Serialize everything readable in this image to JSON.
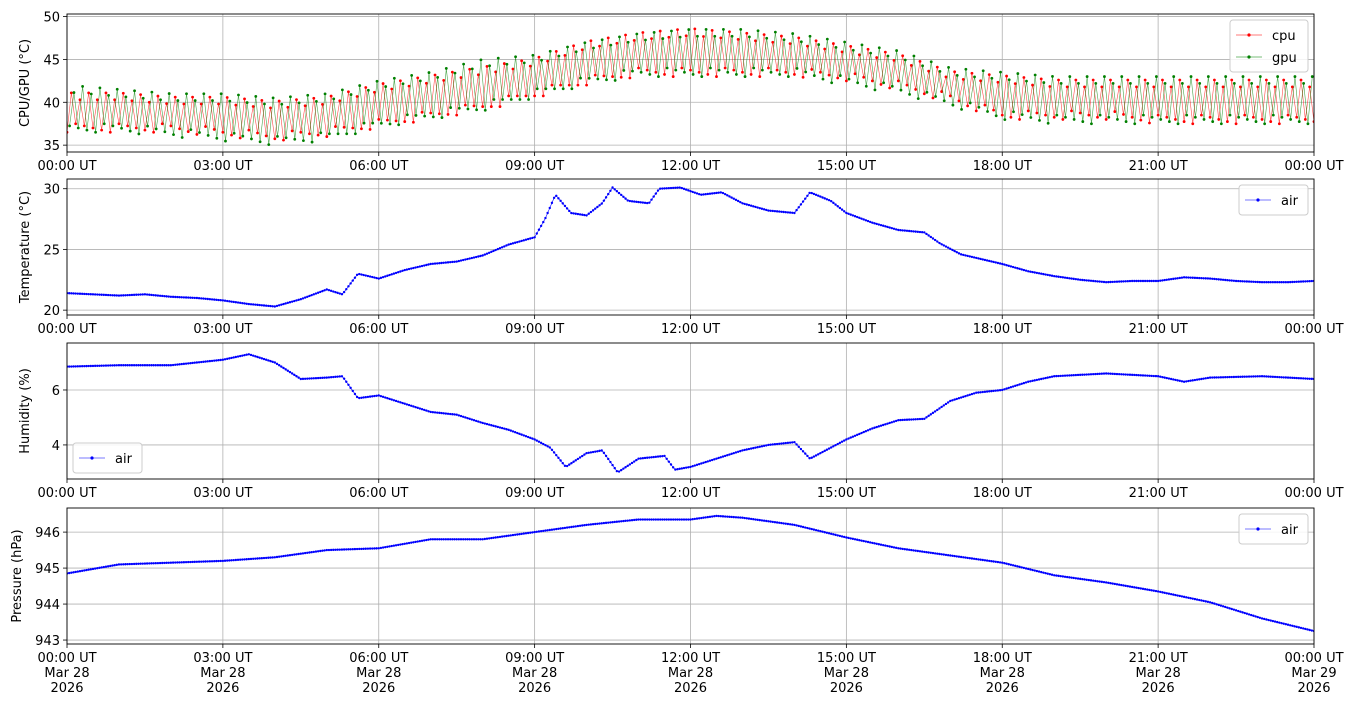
{
  "x_tick_labels": [
    "00:00 UT",
    "03:00 UT",
    "06:00 UT",
    "09:00 UT",
    "12:00 UT",
    "15:00 UT",
    "18:00 UT",
    "21:00 UT",
    "00:00 UT"
  ],
  "x_tick_dates": [
    [
      "Mar 28",
      "2026"
    ],
    [
      "Mar 28",
      "2026"
    ],
    [
      "Mar 28",
      "2026"
    ],
    [
      "Mar 28",
      "2026"
    ],
    [
      "Mar 28",
      "2026"
    ],
    [
      "Mar 28",
      "2026"
    ],
    [
      "Mar 28",
      "2026"
    ],
    [
      "Mar 28",
      "2026"
    ],
    [
      "Mar 29",
      "2026"
    ]
  ],
  "x_tick_hours": [
    0,
    3,
    6,
    9,
    12,
    15,
    18,
    21,
    24
  ],
  "colors": {
    "cpu": "#ff0000",
    "gpu": "#008000",
    "air": "#0000ff",
    "grid": "#b0b0b0"
  },
  "chart_data": [
    {
      "type": "line",
      "ylabel": "CPU/GPU (°C)",
      "ylim": [
        34.2,
        50.3
      ],
      "yticks": [
        35,
        40,
        45,
        50
      ],
      "grid": true,
      "legend": "top-right",
      "hours": [
        0,
        1,
        2,
        3,
        4,
        5,
        6,
        7,
        8,
        9,
        10,
        11,
        12,
        13,
        14,
        15,
        16,
        17,
        18,
        19,
        20,
        21,
        22,
        23,
        24
      ],
      "series": [
        {
          "name": "cpu",
          "low": [
            36.5,
            36.5,
            36.5,
            36,
            35.5,
            36,
            37,
            38,
            39,
            40.5,
            42,
            43,
            43,
            43,
            43,
            42.5,
            41.5,
            40,
            38,
            38,
            38,
            37.5,
            37.5,
            37.5,
            37.5
          ],
          "high": [
            41.5,
            41.5,
            41,
            41,
            40.5,
            41,
            42.5,
            43.5,
            44.5,
            45.5,
            47.5,
            48.5,
            49,
            48.5,
            48,
            47,
            46,
            44,
            43.5,
            43,
            43,
            43,
            43,
            43,
            43
          ]
        },
        {
          "name": "gpu",
          "low": [
            36.5,
            36.5,
            36,
            35.5,
            35,
            35.5,
            37,
            38,
            39,
            40.5,
            42,
            43,
            43,
            43,
            43,
            42,
            41,
            39.5,
            38,
            37.5,
            37.5,
            37.5,
            37.5,
            37.5,
            37.5
          ],
          "high": [
            42,
            41.5,
            41,
            41,
            40.5,
            41,
            42.5,
            43.5,
            45,
            45.5,
            47,
            48,
            48.5,
            48.5,
            48,
            47,
            46,
            44,
            43.5,
            43,
            43,
            43,
            43,
            43,
            43
          ]
        }
      ]
    },
    {
      "type": "line",
      "ylabel": "Temperature (°C)",
      "ylim": [
        19.6,
        30.8
      ],
      "yticks": [
        20,
        25,
        30
      ],
      "grid": true,
      "legend": "top-right",
      "series": [
        {
          "name": "air",
          "x": [
            0,
            0.5,
            1,
            1.5,
            2,
            2.5,
            3,
            3.5,
            4,
            4.5,
            5,
            5.3,
            5.6,
            6,
            6.5,
            7,
            7.5,
            8,
            8.5,
            9,
            9.2,
            9.4,
            9.7,
            10,
            10.3,
            10.5,
            10.8,
            11.2,
            11.4,
            11.8,
            12.2,
            12.6,
            13,
            13.5,
            14,
            14.3,
            14.7,
            15,
            15.5,
            16,
            16.5,
            16.8,
            17.2,
            17.5,
            18,
            18.5,
            19,
            19.5,
            20,
            20.5,
            21,
            21.5,
            22,
            22.5,
            23,
            23.5,
            24
          ],
          "y": [
            21.4,
            21.3,
            21.2,
            21.3,
            21.1,
            21.0,
            20.8,
            20.5,
            20.3,
            20.9,
            21.7,
            21.3,
            23.0,
            22.6,
            23.3,
            23.8,
            24.0,
            24.5,
            25.4,
            26.0,
            27.5,
            29.5,
            28.0,
            27.8,
            28.8,
            30.1,
            29.0,
            28.8,
            30.0,
            30.1,
            29.5,
            29.7,
            28.8,
            28.2,
            28.0,
            29.7,
            29.0,
            28.0,
            27.2,
            26.6,
            26.4,
            25.5,
            24.6,
            24.3,
            23.8,
            23.2,
            22.8,
            22.5,
            22.3,
            22.4,
            22.4,
            22.7,
            22.6,
            22.4,
            22.3,
            22.3,
            22.4
          ]
        }
      ]
    },
    {
      "type": "line",
      "ylabel": "Humidity (%)",
      "ylim": [
        2.76,
        7.71
      ],
      "yticks": [
        4,
        6
      ],
      "grid": true,
      "legend": "lower-left",
      "series": [
        {
          "name": "air",
          "x": [
            0,
            1,
            2,
            3,
            3.5,
            4,
            4.5,
            5,
            5.3,
            5.6,
            6,
            6.5,
            7,
            7.5,
            8,
            8.5,
            9,
            9.3,
            9.6,
            10,
            10.3,
            10.6,
            11,
            11.5,
            11.7,
            12,
            12.5,
            13,
            13.5,
            14,
            14.3,
            15,
            15.5,
            16,
            16.5,
            17,
            17.5,
            18,
            18.5,
            19,
            20,
            21,
            21.5,
            22,
            23,
            24
          ],
          "y": [
            6.85,
            6.9,
            6.9,
            7.1,
            7.3,
            7.0,
            6.4,
            6.45,
            6.5,
            5.7,
            5.8,
            5.5,
            5.2,
            5.1,
            4.8,
            4.55,
            4.2,
            3.9,
            3.2,
            3.7,
            3.8,
            3.0,
            3.5,
            3.6,
            3.1,
            3.2,
            3.5,
            3.8,
            4.0,
            4.1,
            3.5,
            4.2,
            4.6,
            4.9,
            4.95,
            5.6,
            5.9,
            6.0,
            6.3,
            6.5,
            6.6,
            6.5,
            6.3,
            6.45,
            6.5,
            6.4
          ]
        }
      ]
    },
    {
      "type": "line",
      "ylabel": "Pressure (hPa)",
      "ylim": [
        942.89,
        946.67
      ],
      "yticks": [
        943,
        944,
        945,
        946
      ],
      "grid": true,
      "legend": "top-right",
      "series": [
        {
          "name": "air",
          "x": [
            0,
            1,
            2,
            3,
            4,
            5,
            6,
            7,
            8,
            9,
            10,
            11,
            12,
            12.5,
            13,
            14,
            15,
            16,
            17,
            18,
            19,
            20,
            21,
            22,
            23,
            24
          ],
          "y": [
            944.85,
            945.1,
            945.15,
            945.2,
            945.3,
            945.5,
            945.55,
            945.8,
            945.8,
            946.0,
            946.2,
            946.35,
            946.35,
            946.45,
            946.4,
            946.2,
            945.85,
            945.55,
            945.35,
            945.15,
            944.8,
            944.6,
            944.35,
            944.05,
            943.6,
            943.25
          ]
        }
      ]
    }
  ]
}
